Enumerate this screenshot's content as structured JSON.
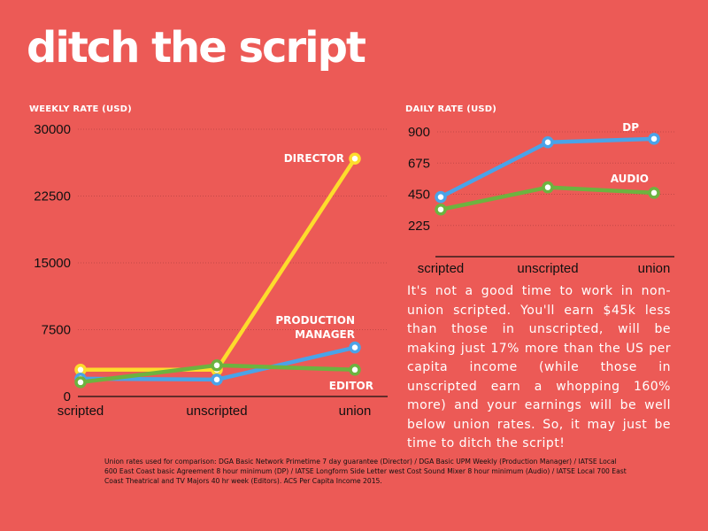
{
  "title": "ditch the script",
  "colors": {
    "background": "#ec5a56",
    "director": "#fddc2c",
    "production_manager": "#4aa3e8",
    "editor": "#6db33f",
    "dp": "#4aa3e8",
    "audio": "#6db33f"
  },
  "chart_data": [
    {
      "type": "line",
      "ylabel": "WEEKLY RATE (USD)",
      "categories": [
        "scripted",
        "unscripted",
        "union"
      ],
      "ylim": [
        0,
        30000
      ],
      "yticks": [
        "0",
        "7500",
        "15000",
        "22500",
        "30000"
      ],
      "grid": true,
      "series": [
        {
          "name": "DIRECTOR",
          "values": [
            3000,
            3000,
            26700
          ]
        },
        {
          "name": "PRODUCTION MANAGER",
          "values": [
            2000,
            1900,
            5500
          ]
        },
        {
          "name": "EDITOR",
          "values": [
            1600,
            3500,
            3000
          ]
        }
      ],
      "labels": {
        "director": "DIRECTOR",
        "pm_line1": "PRODUCTION",
        "pm_line2": "MANAGER",
        "editor": "EDITOR"
      }
    },
    {
      "type": "line",
      "ylabel": "DAILY RATE (USD)",
      "categories": [
        "scripted",
        "unscripted",
        "union"
      ],
      "ylim": [
        0,
        900
      ],
      "yticks": [
        "225",
        "450",
        "675",
        "900"
      ],
      "grid": true,
      "series": [
        {
          "name": "DP",
          "values": [
            430,
            825,
            850
          ]
        },
        {
          "name": "AUDIO",
          "values": [
            340,
            500,
            460
          ]
        }
      ],
      "labels": {
        "dp": "DP",
        "audio": "AUDIO"
      }
    }
  ],
  "body_text": "It's not a good time to work in non-union scripted. You'll earn $45k less than those in unscripted, will be making just 17% more than the US per capita income (while those in unscripted earn a whopping 160% more) and your earnings will be well below union rates. So, it may  just be time to ditch the script!",
  "footnote": "Union rates used for comparison: DGA Basic Network Primetime 7 day guarantee (Director) / DGA Basic UPM Weekly (Production Manager) / IATSE Local 600 East Coast basic Agreement 8 hour minimum (DP) / IATSE Longform Side Letter west Cost Sound Mixer 8 hour minimum (Audio) / IATSE Local 700 East Coast Theatrical and TV Majors 40 hr week (Editors). ACS Per Capita Income 2015."
}
